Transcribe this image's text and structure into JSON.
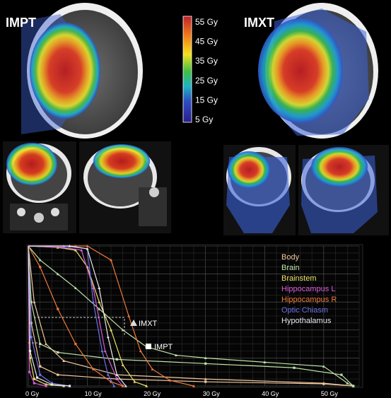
{
  "panel_labels": {
    "impt": "IMPT",
    "imxt": "IMXT"
  },
  "colorbar": {
    "labels": [
      "55 Gy",
      "45 Gy",
      "35 Gy",
      "25 Gy",
      "15 Gy",
      "5 Gy"
    ],
    "colors": [
      "#c0202a",
      "#f07a1a",
      "#f4e21b",
      "#3fbf43",
      "#1fb3c5",
      "#2d4fc3",
      "#2a1d8f"
    ]
  },
  "chart_data": {
    "type": "line",
    "title": "",
    "xlabel": "",
    "ylabel": "",
    "xlim": [
      0,
      56
    ],
    "ylim": [
      0,
      100
    ],
    "x_ticks": [
      "0 Gy",
      "10 Gy",
      "20 Gy",
      "30 Gy",
      "40 Gy",
      "50 Gy"
    ],
    "x_tick_values": [
      0,
      10,
      20,
      30,
      40,
      50
    ],
    "grid": true,
    "legend_position": "top-right",
    "series": [
      {
        "name": "Body",
        "color": "#f2c9a0",
        "imxt": [
          [
            0,
            100
          ],
          [
            1,
            60
          ],
          [
            3,
            30
          ],
          [
            6,
            18
          ],
          [
            15,
            8
          ],
          [
            30,
            5
          ],
          [
            50,
            2
          ],
          [
            55,
            0
          ]
        ],
        "impt": [
          [
            0,
            100
          ],
          [
            0.5,
            45
          ],
          [
            2,
            14
          ],
          [
            5,
            8
          ],
          [
            15,
            5
          ],
          [
            30,
            3
          ],
          [
            50,
            1.5
          ],
          [
            55,
            0
          ]
        ]
      },
      {
        "name": "Brain",
        "color": "#bfe3a7",
        "imxt": [
          [
            0,
            100
          ],
          [
            2,
            90
          ],
          [
            5,
            80
          ],
          [
            8,
            70
          ],
          [
            12,
            55
          ],
          [
            16,
            40
          ],
          [
            20,
            28
          ],
          [
            25,
            22
          ],
          [
            30,
            20
          ],
          [
            40,
            17
          ],
          [
            50,
            14
          ],
          [
            54,
            2
          ],
          [
            55,
            0
          ]
        ],
        "impt": [
          [
            0,
            100
          ],
          [
            0.5,
            60
          ],
          [
            2,
            30
          ],
          [
            5,
            24
          ],
          [
            15,
            19
          ],
          [
            30,
            16
          ],
          [
            45,
            13
          ],
          [
            53,
            8
          ],
          [
            55,
            0
          ]
        ]
      },
      {
        "name": "Brainstem",
        "color": "#ece26a",
        "imxt": [
          [
            0,
            100
          ],
          [
            5,
            99
          ],
          [
            8,
            97
          ],
          [
            10,
            85
          ],
          [
            12,
            60
          ],
          [
            14,
            40
          ],
          [
            16,
            15
          ],
          [
            18,
            3
          ],
          [
            20,
            0
          ]
        ],
        "impt": [
          [
            0,
            100
          ],
          [
            0.3,
            20
          ],
          [
            1,
            5
          ],
          [
            3,
            1
          ],
          [
            6,
            0
          ]
        ]
      },
      {
        "name": "Hippocampus L",
        "color": "#d65bd6",
        "imxt": [
          [
            0,
            100
          ],
          [
            6,
            99
          ],
          [
            9,
            97
          ],
          [
            11,
            70
          ],
          [
            13,
            25
          ],
          [
            15,
            5
          ],
          [
            16,
            0
          ]
        ],
        "impt": [
          [
            0,
            100
          ],
          [
            0.2,
            10
          ],
          [
            1,
            2
          ],
          [
            3,
            0
          ]
        ]
      },
      {
        "name": "Hippocampus R",
        "color": "#f07a3a",
        "imxt": [
          [
            0,
            100
          ],
          [
            8,
            100
          ],
          [
            10,
            100
          ],
          [
            14,
            90
          ],
          [
            17,
            50
          ],
          [
            19,
            25
          ],
          [
            21,
            12
          ],
          [
            24,
            4
          ],
          [
            28,
            0
          ]
        ],
        "impt": [
          [
            0,
            100
          ],
          [
            2,
            85
          ],
          [
            5,
            55
          ],
          [
            8,
            30
          ],
          [
            11,
            12
          ],
          [
            14,
            3
          ],
          [
            16,
            0
          ]
        ]
      },
      {
        "name": "Optic Chiasm",
        "color": "#6c73e8",
        "imxt": [
          [
            0,
            100
          ],
          [
            6,
            100
          ],
          [
            10,
            98
          ],
          [
            11,
            60
          ],
          [
            12.5,
            25
          ],
          [
            13.5,
            8
          ],
          [
            14.5,
            0
          ]
        ],
        "impt": [
          [
            0,
            100
          ],
          [
            0.5,
            35
          ],
          [
            2,
            8
          ],
          [
            4,
            2
          ],
          [
            7,
            0
          ]
        ]
      },
      {
        "name": "Hypothalamus",
        "color": "#e8e8f0",
        "imxt": [
          [
            0,
            100
          ],
          [
            7,
            100
          ],
          [
            10,
            98
          ],
          [
            12,
            70
          ],
          [
            13.5,
            35
          ],
          [
            15,
            8
          ],
          [
            16.5,
            0
          ]
        ],
        "impt": [
          [
            0,
            100
          ],
          [
            0.3,
            25
          ],
          [
            1.5,
            6
          ],
          [
            4,
            1
          ],
          [
            7,
            0
          ]
        ]
      }
    ],
    "annotations": [
      {
        "marker": "triangle",
        "text": "IMXT"
      },
      {
        "marker": "square",
        "text": "IMPT"
      }
    ]
  }
}
